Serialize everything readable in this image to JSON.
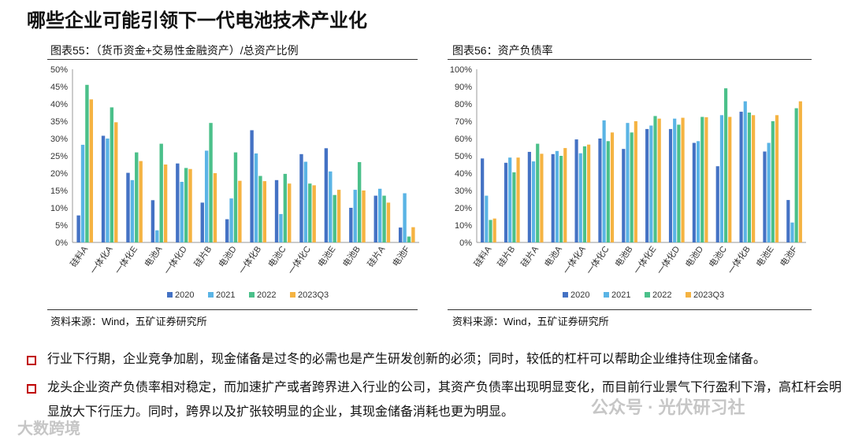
{
  "page_title": "哪些企业可能引领下一代电池技术产业化",
  "left_panel": {
    "title": "图表55：（货币资金+交易性金融资产）/总资产比例",
    "source": "资料来源：Wind，五矿证券研究所"
  },
  "right_panel": {
    "title": "图表56：资产负债率",
    "source": "资料来源：Wind，五矿证券研究所"
  },
  "bullets": [
    "行业下行期，企业竞争加剧，现金储备是过冬的必需也是产生研发创新的必须；同时，较低的杠杆可以帮助企业维持住现金储备。",
    "龙头企业资产负债率相对稳定，而加速扩产或者跨界进入行业的公司，其资产负债率出现明显变化，而目前行业景气下行盈利下滑，高杠杆会明显放大下行压力。同时，跨界以及扩张较明显的企业，其现金储备消耗也更为明显。"
  ],
  "watermarks": [
    "公众号 · 光伏研习社",
    "大数跨境"
  ],
  "colors": {
    "s2020": "#4472c4",
    "s2021": "#5ab4e5",
    "s2022": "#4bc08a",
    "s2023": "#f5b342",
    "bullet": "#c00000"
  },
  "chart_data": [
    {
      "type": "bar",
      "title": "图表55：（货币资金+交易性金融资产）/总资产比例",
      "categories": [
        "硅料A",
        "一体化A",
        "一体化E",
        "电池A",
        "一体化D",
        "硅片B",
        "电池D",
        "一体化B",
        "电池C",
        "一体化C",
        "电池E",
        "电池B",
        "硅片A",
        "电池F"
      ],
      "series": [
        {
          "name": "2020",
          "values": [
            7.8,
            30.8,
            20.1,
            12.2,
            22.8,
            11.5,
            6.7,
            32.4,
            18.0,
            25.5,
            27.2,
            10.0,
            13.5,
            4.3
          ]
        },
        {
          "name": "2021",
          "values": [
            28.2,
            30.0,
            18.0,
            3.5,
            17.5,
            26.5,
            12.7,
            25.7,
            8.2,
            23.3,
            20.5,
            15.2,
            15.5,
            14.2
          ]
        },
        {
          "name": "2022",
          "values": [
            45.5,
            39.0,
            26.0,
            28.5,
            21.5,
            34.5,
            26.0,
            19.2,
            19.8,
            17.0,
            13.7,
            23.2,
            13.5,
            1.7
          ]
        },
        {
          "name": "2023Q3",
          "values": [
            41.3,
            34.7,
            23.5,
            22.5,
            21.2,
            20.0,
            17.8,
            17.7,
            17.0,
            16.5,
            15.2,
            15.0,
            11.5,
            4.4
          ]
        }
      ],
      "ylim": [
        0,
        50
      ],
      "yticks": [
        "0%",
        "5%",
        "10%",
        "15%",
        "20%",
        "25%",
        "30%",
        "35%",
        "40%",
        "45%",
        "50%"
      ],
      "legend": "bottom"
    },
    {
      "type": "bar",
      "title": "图表56：资产负债率",
      "categories": [
        "硅料A",
        "硅片B",
        "硅片A",
        "电池A",
        "一体化A",
        "一体化C",
        "电池B",
        "一体化E",
        "一体化D",
        "电池D",
        "电池C",
        "一体化B",
        "电池E",
        "电池F"
      ],
      "series": [
        {
          "name": "2020",
          "values": [
            48.5,
            46.0,
            52.3,
            51.0,
            59.5,
            60.0,
            54.0,
            65.5,
            65.5,
            57.5,
            44.0,
            75.5,
            52.5,
            24.5
          ]
        },
        {
          "name": "2021",
          "values": [
            27.0,
            49.0,
            46.8,
            52.8,
            51.5,
            70.5,
            69.0,
            67.5,
            71.5,
            58.5,
            73.5,
            81.5,
            57.5,
            11.5
          ]
        },
        {
          "name": "2022",
          "values": [
            13.0,
            40.5,
            57.0,
            50.0,
            55.5,
            58.5,
            63.5,
            73.0,
            68.0,
            72.5,
            89.0,
            75.0,
            70.0,
            77.5
          ]
        },
        {
          "name": "2023Q3",
          "values": [
            13.8,
            49.0,
            51.2,
            54.5,
            56.5,
            63.5,
            70.0,
            71.5,
            72.0,
            72.3,
            72.5,
            73.5,
            73.5,
            81.5
          ]
        }
      ],
      "ylim": [
        0,
        100
      ],
      "yticks": [
        "0%",
        "10%",
        "20%",
        "30%",
        "40%",
        "50%",
        "60%",
        "70%",
        "80%",
        "90%",
        "100%"
      ],
      "legend": "bottom"
    }
  ]
}
